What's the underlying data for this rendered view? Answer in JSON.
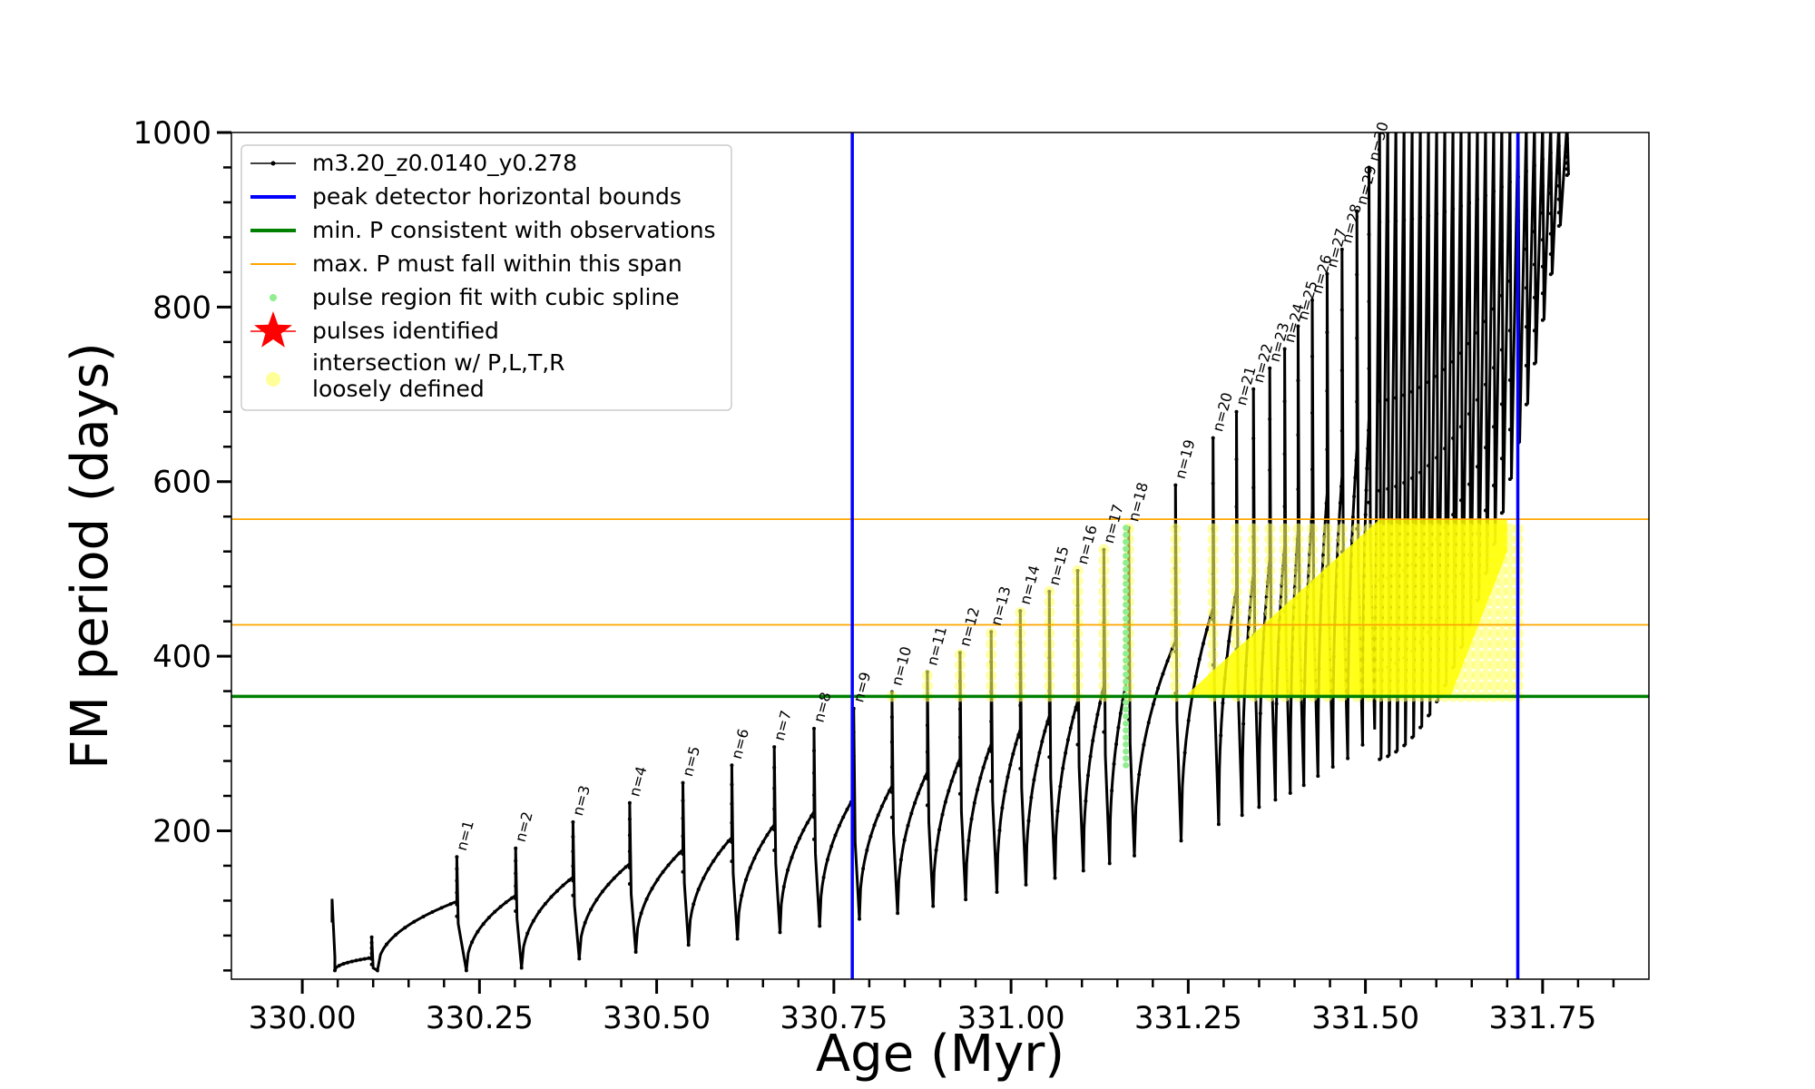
{
  "chart_data": {
    "type": "line",
    "title": "",
    "xlabel": "Age (Myr)",
    "ylabel": "FM period (days)",
    "xlim": [
      329.9,
      331.9
    ],
    "ylim": [
      30,
      1000
    ],
    "xticks": [
      330.0,
      330.25,
      330.5,
      330.75,
      331.0,
      331.25,
      331.5,
      331.75
    ],
    "xtick_labels": [
      "330.00",
      "330.25",
      "330.50",
      "330.75",
      "331.00",
      "331.25",
      "331.50",
      "331.75"
    ],
    "yticks": [
      200,
      400,
      600,
      800,
      1000
    ],
    "ytick_labels": [
      "200",
      "400",
      "600",
      "800",
      "1000"
    ],
    "grid": false,
    "legend_position": "top-left",
    "legend": [
      {
        "label": "m3.20_z0.0140_y0.278",
        "style": "line-dots",
        "color": "#000000"
      },
      {
        "label": "peak detector horizontal bounds",
        "style": "line-thick",
        "color": "#0000ff"
      },
      {
        "label": "min. P consistent with observations",
        "style": "line-thick",
        "color": "#008000"
      },
      {
        "label": "max. P must fall within this span",
        "style": "line-thin",
        "color": "#ffa500"
      },
      {
        "label": "pulse region fit with cubic spline",
        "style": "dot",
        "color": "#90ee90"
      },
      {
        "label": "pulses identified",
        "style": "star",
        "color": "#ff0000"
      },
      {
        "label": "intersection w/ P,L,T,R",
        "label2": "loosely defined",
        "style": "circle",
        "color": "#ffff99"
      }
    ],
    "vertical_lines": [
      {
        "x": 330.776,
        "color": "#0000ff",
        "meaning": "peak detector horizontal bounds"
      },
      {
        "x": 331.715,
        "color": "#0000ff",
        "meaning": "peak detector horizontal bounds"
      }
    ],
    "horizontal_lines": [
      {
        "y": 354,
        "color": "#008000",
        "meaning": "min. P consistent with observations"
      },
      {
        "y": 436,
        "color": "#ffa500",
        "meaning": "max. P span lower"
      },
      {
        "y": 557,
        "color": "#ffa500",
        "meaning": "max. P span upper"
      }
    ],
    "pulses": [
      {
        "n": 1,
        "age": 330.218,
        "peak": 170
      },
      {
        "n": 2,
        "age": 330.301,
        "peak": 180
      },
      {
        "n": 3,
        "age": 330.382,
        "peak": 210
      },
      {
        "n": 4,
        "age": 330.462,
        "peak": 232
      },
      {
        "n": 5,
        "age": 330.537,
        "peak": 255
      },
      {
        "n": 6,
        "age": 330.606,
        "peak": 275
      },
      {
        "n": 7,
        "age": 330.666,
        "peak": 296
      },
      {
        "n": 8,
        "age": 330.722,
        "peak": 317
      },
      {
        "n": 9,
        "age": 330.778,
        "peak": 340
      },
      {
        "n": 10,
        "age": 330.832,
        "peak": 359
      },
      {
        "n": 11,
        "age": 330.882,
        "peak": 382
      },
      {
        "n": 12,
        "age": 330.928,
        "peak": 404
      },
      {
        "n": 13,
        "age": 330.972,
        "peak": 428
      },
      {
        "n": 14,
        "age": 331.013,
        "peak": 452
      },
      {
        "n": 15,
        "age": 331.054,
        "peak": 474
      },
      {
        "n": 16,
        "age": 331.094,
        "peak": 498
      },
      {
        "n": 17,
        "age": 331.131,
        "peak": 522
      },
      {
        "n": 18,
        "age": 331.166,
        "peak": 547
      },
      {
        "n": 19,
        "age": 331.232,
        "peak": 596
      },
      {
        "n": 20,
        "age": 331.285,
        "peak": 650
      },
      {
        "n": 21,
        "age": 331.318,
        "peak": 680
      },
      {
        "n": 22,
        "age": 331.342,
        "peak": 706
      },
      {
        "n": 23,
        "age": 331.365,
        "peak": 730
      },
      {
        "n": 24,
        "age": 331.386,
        "peak": 752
      },
      {
        "n": 25,
        "age": 331.405,
        "peak": 778
      },
      {
        "n": 26,
        "age": 331.425,
        "peak": 808
      },
      {
        "n": 27,
        "age": 331.446,
        "peak": 838
      },
      {
        "n": 28,
        "age": 331.467,
        "peak": 866
      },
      {
        "n": 29,
        "age": 331.488,
        "peak": 910
      },
      {
        "n": 30,
        "age": 331.505,
        "peak": 960
      }
    ],
    "pulse_labels": [
      "n=1",
      "n=2",
      "n=3",
      "n=4",
      "n=5",
      "n=6",
      "n=7",
      "n=8",
      "n=9",
      "n=10",
      "n=11",
      "n=12",
      "n=13",
      "n=14",
      "n=15",
      "n=16",
      "n=17",
      "n=18",
      "n=19",
      "n=20",
      "n=21",
      "n=22",
      "n=23",
      "n=24",
      "n=25",
      "n=26",
      "n=27",
      "n=28",
      "n=29",
      "n=30"
    ]
  }
}
